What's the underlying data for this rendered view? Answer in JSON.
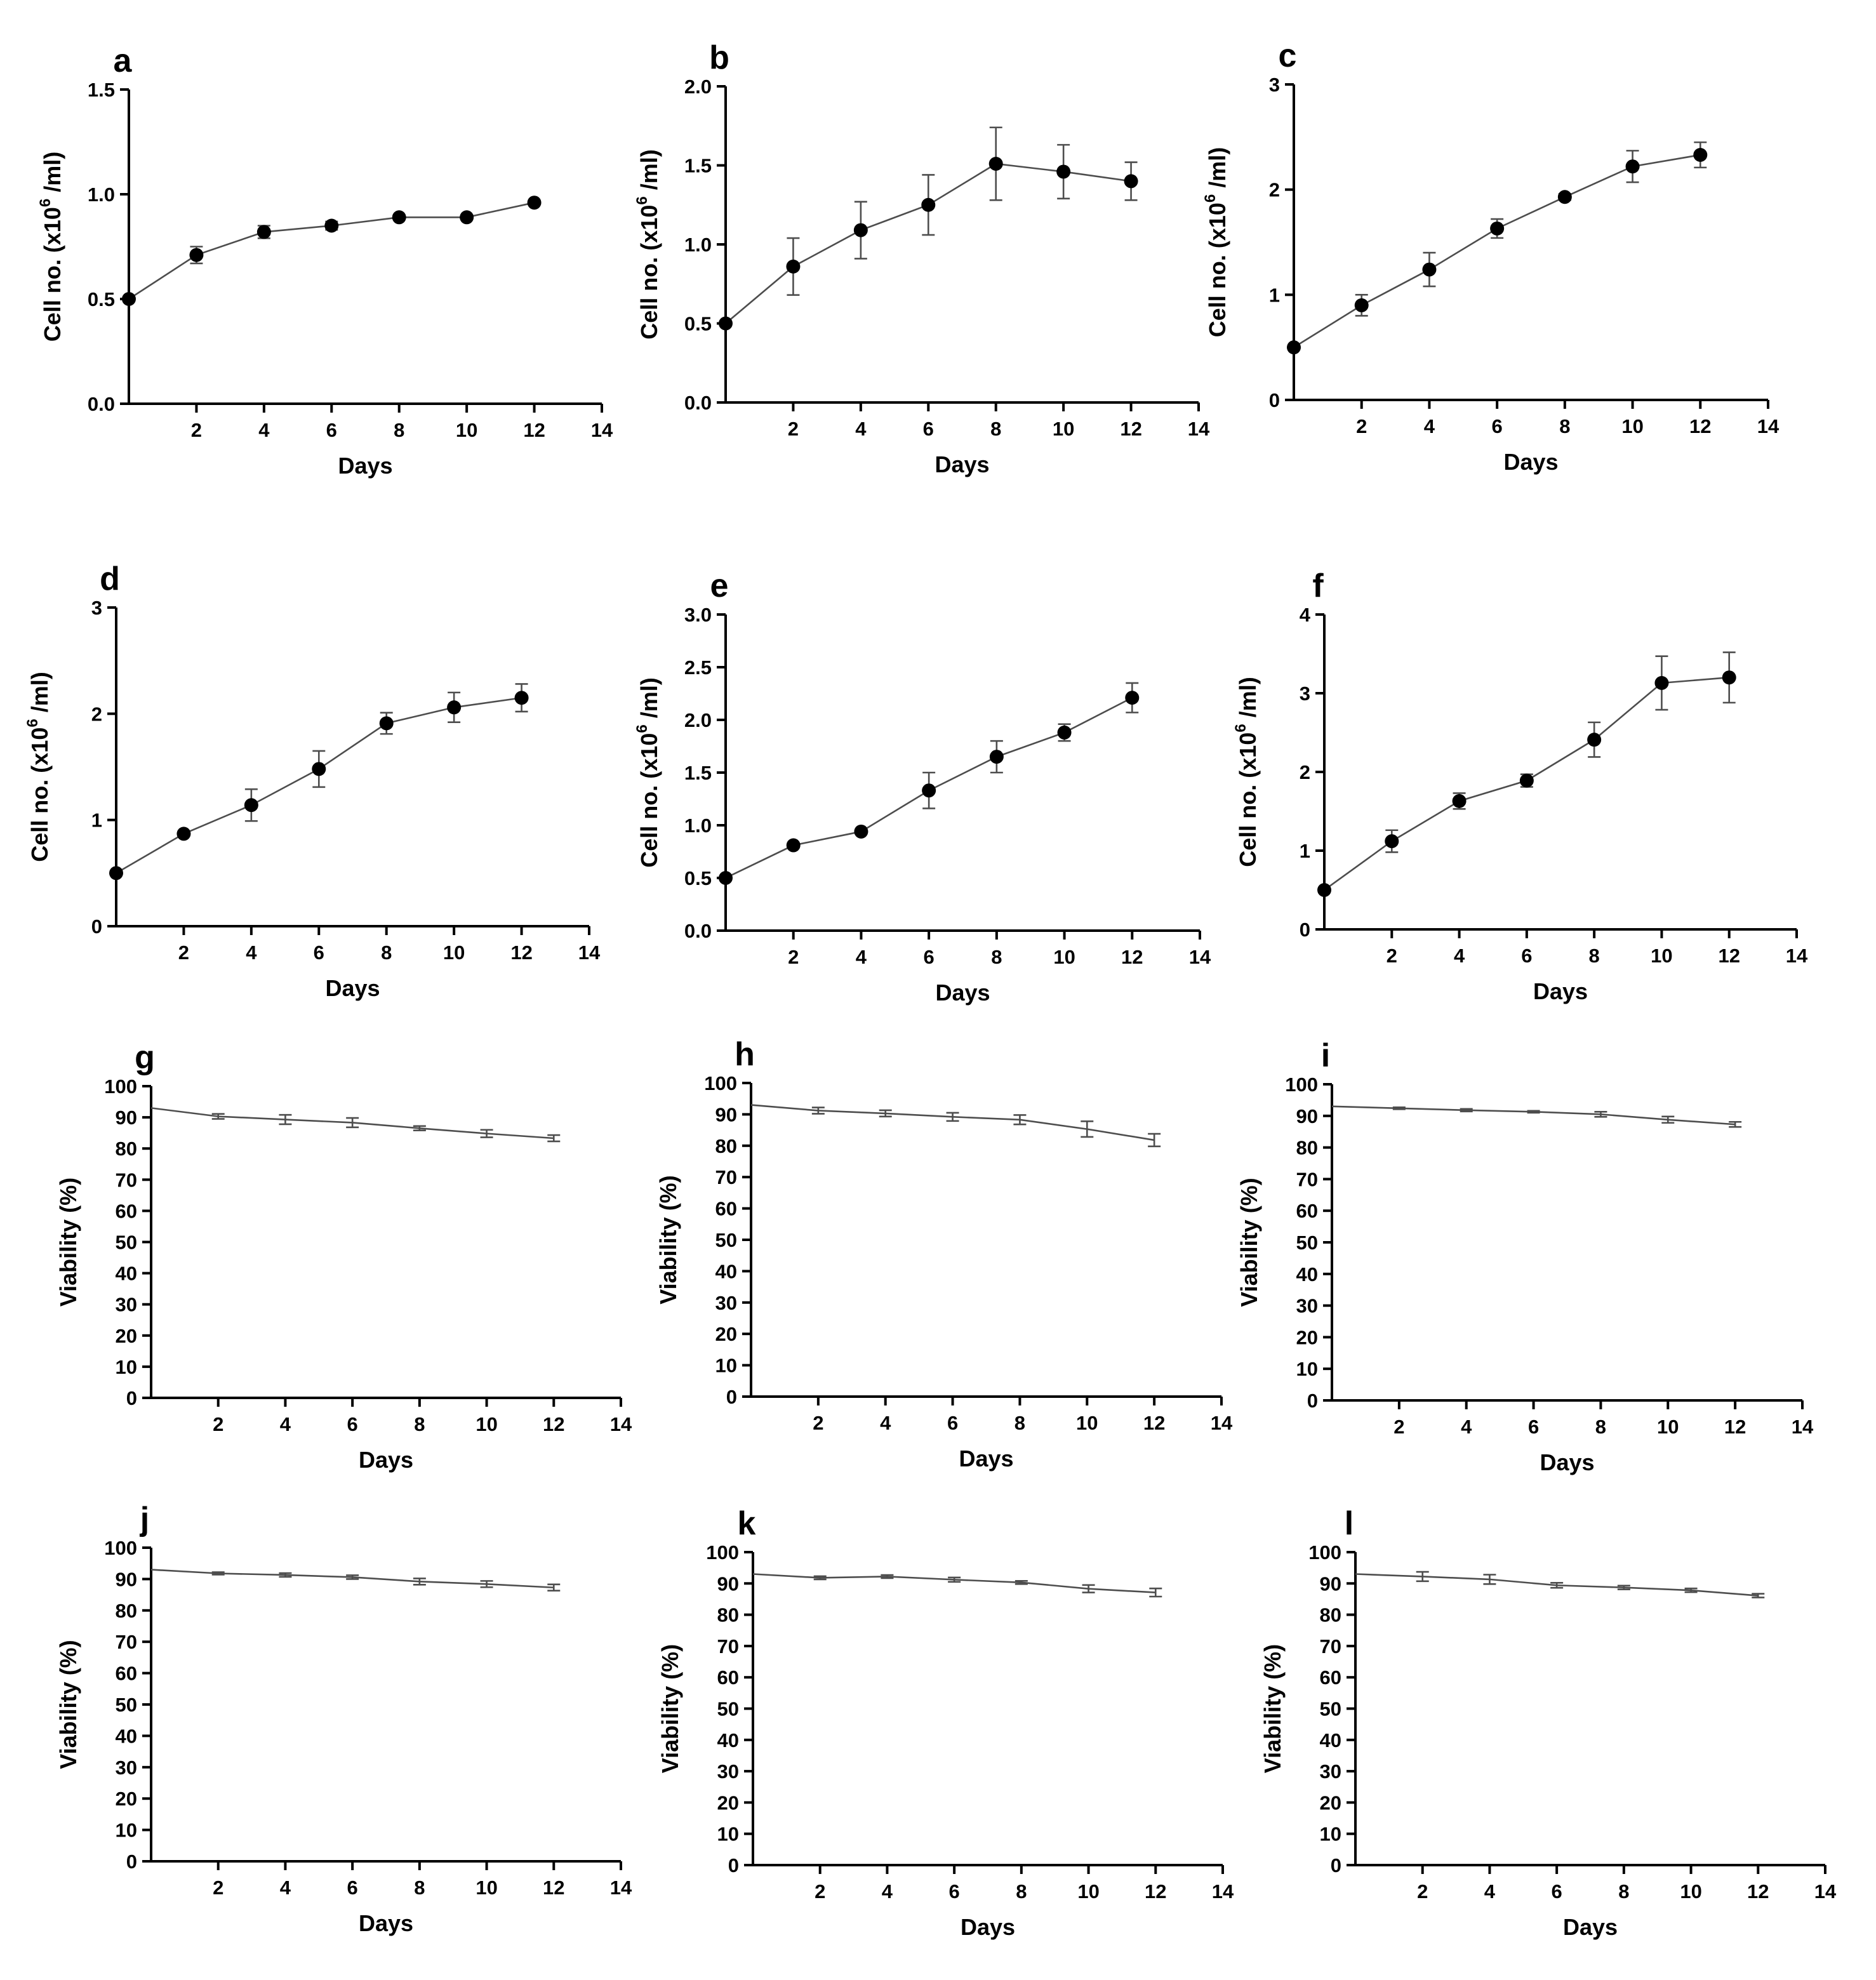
{
  "chart_data": [
    {
      "panel": "a",
      "type": "line",
      "xlabel": "Days",
      "ylabel": "Cell no. (x10",
      "ylabel_sup": "6",
      "ylabel_tail": " /ml)",
      "xlim": [
        0,
        14
      ],
      "xticks": [
        2,
        4,
        6,
        8,
        10,
        12,
        14
      ],
      "ylim": [
        0,
        1.5
      ],
      "yticks": [
        "0.0",
        "0.5",
        "1.0",
        "1.5"
      ],
      "markers": true,
      "x": [
        0,
        2,
        4,
        6,
        8,
        10,
        12
      ],
      "y": [
        0.5,
        0.71,
        0.82,
        0.85,
        0.89,
        0.89,
        0.96
      ],
      "err": [
        0,
        0.04,
        0.03,
        0.02,
        0.01,
        0.01,
        0.01
      ]
    },
    {
      "panel": "b",
      "type": "line",
      "xlabel": "Days",
      "ylabel": "Cell no. (x10",
      "ylabel_sup": "6",
      "ylabel_tail": " /ml)",
      "xlim": [
        0,
        14
      ],
      "xticks": [
        2,
        4,
        6,
        8,
        10,
        12,
        14
      ],
      "ylim": [
        0,
        2.0
      ],
      "yticks": [
        "0.0",
        "0.5",
        "1.0",
        "1.5",
        "2.0"
      ],
      "markers": true,
      "x": [
        0,
        2,
        4,
        6,
        8,
        10,
        12
      ],
      "y": [
        0.5,
        0.86,
        1.09,
        1.25,
        1.51,
        1.46,
        1.4
      ],
      "err": [
        0,
        0.18,
        0.18,
        0.19,
        0.23,
        0.17,
        0.12
      ]
    },
    {
      "panel": "c",
      "type": "line",
      "xlabel": "Days",
      "ylabel": "Cell no. (x10",
      "ylabel_sup": "6",
      "ylabel_tail": " /ml)",
      "xlim": [
        0,
        14
      ],
      "xticks": [
        2,
        4,
        6,
        8,
        10,
        12,
        14
      ],
      "ylim": [
        0,
        3
      ],
      "yticks": [
        "0",
        "1",
        "2",
        "3"
      ],
      "markers": true,
      "x": [
        0,
        2,
        4,
        6,
        8,
        10,
        12
      ],
      "y": [
        0.5,
        0.9,
        1.24,
        1.63,
        1.93,
        2.22,
        2.33
      ],
      "err": [
        0,
        0.1,
        0.16,
        0.09,
        0.03,
        0.15,
        0.12
      ]
    },
    {
      "panel": "d",
      "type": "line",
      "xlabel": "Days",
      "ylabel": "Cell no. (x10",
      "ylabel_sup": "6",
      "ylabel_tail": " /ml)",
      "xlim": [
        0,
        14
      ],
      "xticks": [
        2,
        4,
        6,
        8,
        10,
        12,
        14
      ],
      "ylim": [
        0,
        3
      ],
      "yticks": [
        "0",
        "1",
        "2",
        "3"
      ],
      "markers": true,
      "x": [
        0,
        2,
        4,
        6,
        8,
        10,
        12
      ],
      "y": [
        0.5,
        0.87,
        1.14,
        1.48,
        1.91,
        2.06,
        2.15
      ],
      "err": [
        0,
        0.02,
        0.15,
        0.17,
        0.1,
        0.14,
        0.13
      ]
    },
    {
      "panel": "e",
      "type": "line",
      "xlabel": "Days",
      "ylabel": "Cell no. (x10",
      "ylabel_sup": "6",
      "ylabel_tail": " /ml)",
      "xlim": [
        0,
        14
      ],
      "xticks": [
        2,
        4,
        6,
        8,
        10,
        12,
        14
      ],
      "ylim": [
        0,
        3.0
      ],
      "yticks": [
        "0.0",
        "0.5",
        "1.0",
        "1.5",
        "2.0",
        "2.5",
        "3.0"
      ],
      "markers": true,
      "x": [
        0,
        2,
        4,
        6,
        8,
        10,
        12
      ],
      "y": [
        0.5,
        0.81,
        0.94,
        1.33,
        1.65,
        1.88,
        2.21
      ],
      "err": [
        0,
        0.02,
        0.02,
        0.17,
        0.15,
        0.08,
        0.14
      ]
    },
    {
      "panel": "f",
      "type": "line",
      "xlabel": "Days",
      "ylabel": "Cell no. (x10",
      "ylabel_sup": "6",
      "ylabel_tail": " /ml)",
      "xlim": [
        0,
        14
      ],
      "xticks": [
        2,
        4,
        6,
        8,
        10,
        12,
        14
      ],
      "ylim": [
        0,
        4
      ],
      "yticks": [
        "0",
        "1",
        "2",
        "3",
        "4"
      ],
      "markers": true,
      "x": [
        0,
        2,
        4,
        6,
        8,
        10,
        12
      ],
      "y": [
        0.5,
        1.12,
        1.63,
        1.89,
        2.41,
        3.13,
        3.2
      ],
      "err": [
        0,
        0.14,
        0.1,
        0.08,
        0.22,
        0.34,
        0.32
      ]
    },
    {
      "panel": "g",
      "type": "line",
      "xlabel": "Days",
      "ylabel": "Viability (%)",
      "xlim": [
        0,
        14
      ],
      "xticks": [
        2,
        4,
        6,
        8,
        10,
        12,
        14
      ],
      "ylim": [
        0,
        100
      ],
      "yticks": [
        "0",
        "10",
        "20",
        "30",
        "40",
        "50",
        "60",
        "70",
        "80",
        "90",
        "100"
      ],
      "markers": false,
      "x": [
        0,
        2,
        4,
        6,
        8,
        10,
        12
      ],
      "y": [
        93,
        90.3,
        89.3,
        88.3,
        86.5,
        84.8,
        83.3
      ],
      "err": [
        0,
        0.8,
        1.5,
        1.5,
        0.7,
        1.2,
        1.0
      ]
    },
    {
      "panel": "h",
      "type": "line",
      "xlabel": "Days",
      "ylabel": "Viability (%)",
      "xlim": [
        0,
        14
      ],
      "xticks": [
        2,
        4,
        6,
        8,
        10,
        12,
        14
      ],
      "ylim": [
        0,
        100
      ],
      "yticks": [
        "0",
        "10",
        "20",
        "30",
        "40",
        "50",
        "60",
        "70",
        "80",
        "90",
        "100"
      ],
      "markers": false,
      "x": [
        0,
        2,
        4,
        6,
        8,
        10,
        12
      ],
      "y": [
        93,
        91.2,
        90.3,
        89.2,
        88.3,
        85.3,
        81.8
      ],
      "err": [
        0,
        1.0,
        1.0,
        1.3,
        1.5,
        2.5,
        2.0
      ]
    },
    {
      "panel": "i",
      "type": "line",
      "xlabel": "Days",
      "ylabel": "Viability (%)",
      "xlim": [
        0,
        14
      ],
      "xticks": [
        2,
        4,
        6,
        8,
        10,
        12,
        14
      ],
      "ylim": [
        0,
        100
      ],
      "yticks": [
        "0",
        "10",
        "20",
        "30",
        "40",
        "50",
        "60",
        "70",
        "80",
        "90",
        "100"
      ],
      "markers": false,
      "x": [
        0,
        2,
        4,
        6,
        8,
        10,
        12
      ],
      "y": [
        93,
        92.4,
        91.8,
        91.3,
        90.5,
        88.8,
        87.3
      ],
      "err": [
        0,
        0.3,
        0.4,
        0.3,
        0.8,
        1.0,
        0.8
      ]
    },
    {
      "panel": "j",
      "type": "line",
      "xlabel": "Days",
      "ylabel": "Viability (%)",
      "xlim": [
        0,
        14
      ],
      "xticks": [
        2,
        4,
        6,
        8,
        10,
        12,
        14
      ],
      "ylim": [
        0,
        100
      ],
      "yticks": [
        "0",
        "10",
        "20",
        "30",
        "40",
        "50",
        "60",
        "70",
        "80",
        "90",
        "100"
      ],
      "markers": false,
      "x": [
        0,
        2,
        4,
        6,
        8,
        10,
        12
      ],
      "y": [
        93,
        91.8,
        91.3,
        90.6,
        89.2,
        88.4,
        87.3
      ],
      "err": [
        0,
        0.4,
        0.6,
        0.6,
        1.0,
        1.0,
        1.0
      ]
    },
    {
      "panel": "k",
      "type": "line",
      "xlabel": "Days",
      "ylabel": "Viability (%)",
      "xlim": [
        0,
        14
      ],
      "xticks": [
        2,
        4,
        6,
        8,
        10,
        12,
        14
      ],
      "ylim": [
        0,
        100
      ],
      "yticks": [
        "0",
        "10",
        "20",
        "30",
        "40",
        "50",
        "60",
        "70",
        "80",
        "90",
        "100"
      ],
      "markers": false,
      "x": [
        0,
        2,
        4,
        6,
        8,
        10,
        12
      ],
      "y": [
        93,
        91.8,
        92.2,
        91.2,
        90.3,
        88.3,
        87.1
      ],
      "err": [
        0,
        0.5,
        0.5,
        0.7,
        0.5,
        1.2,
        1.3
      ]
    },
    {
      "panel": "l",
      "type": "line",
      "xlabel": "Days",
      "ylabel": "Viability (%)",
      "xlim": [
        0,
        14
      ],
      "xticks": [
        2,
        4,
        6,
        8,
        10,
        12,
        14
      ],
      "ylim": [
        0,
        100
      ],
      "yticks": [
        "0",
        "10",
        "20",
        "30",
        "40",
        "50",
        "60",
        "70",
        "80",
        "90",
        "100"
      ],
      "markers": false,
      "x": [
        0,
        2,
        4,
        6,
        8,
        10,
        12
      ],
      "y": [
        93,
        92.2,
        91.3,
        89.4,
        88.7,
        87.8,
        86.1
      ],
      "err": [
        0,
        1.5,
        1.5,
        0.8,
        0.6,
        0.6,
        0.6
      ]
    }
  ]
}
